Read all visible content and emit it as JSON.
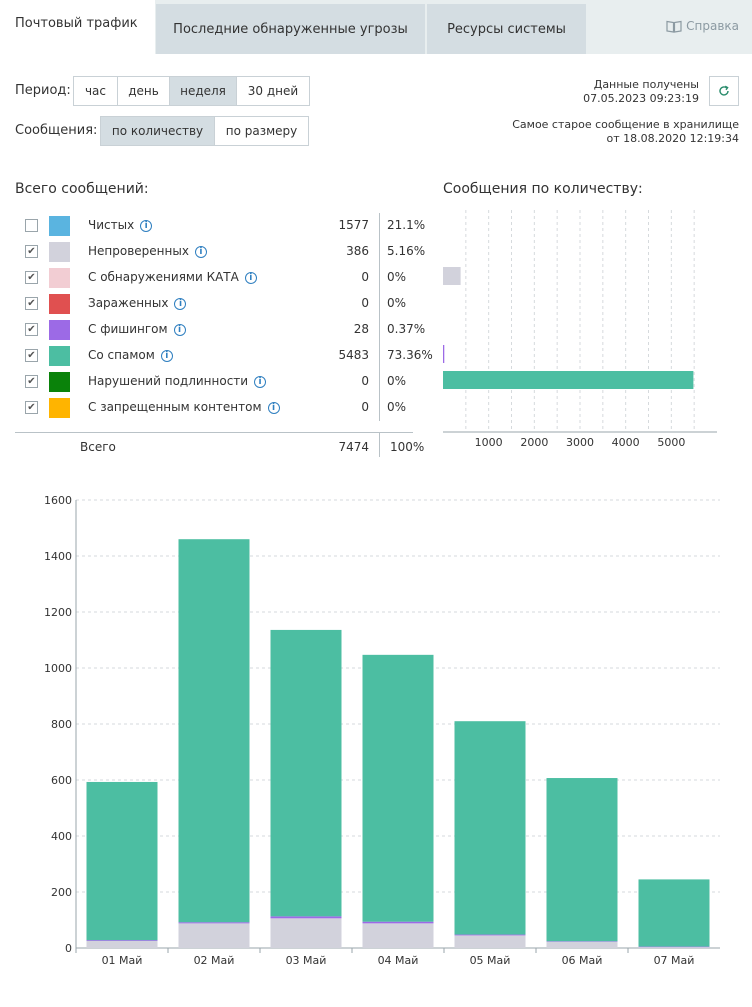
{
  "tabs": [
    {
      "label": "Почтовый трафик",
      "active": true
    },
    {
      "label": "Последние обнаруженные угрозы",
      "active": false
    },
    {
      "label": "Ресурсы системы",
      "active": false
    }
  ],
  "help": {
    "label": "Справка",
    "icon": "book-icon"
  },
  "period": {
    "label": "Период:",
    "options": [
      "час",
      "день",
      "неделя",
      "30 дней"
    ],
    "selected": "неделя"
  },
  "messages_mode": {
    "label": "Сообщения:",
    "options": [
      "по количеству",
      "по размеру"
    ],
    "selected": "по количеству"
  },
  "data_info": {
    "received_label": "Данные получены",
    "received_time": "07.05.2023 09:23:19",
    "oldest_label": "Самое старое сообщение в хранилище",
    "oldest_time": "от 18.08.2020 12:19:34",
    "refresh_icon": "refresh-icon"
  },
  "totals_title": "Всего сообщений:",
  "legend": [
    {
      "name": "Чистых",
      "count": "1577",
      "pct": "21.1%",
      "checked": false,
      "color": "#5ab4e0"
    },
    {
      "name": "Непроверенных",
      "count": "386",
      "pct": "5.16%",
      "checked": true,
      "color": "#d2d2dc"
    },
    {
      "name": "С обнаружениями КАТА",
      "count": "0",
      "pct": "0%",
      "checked": true,
      "color": "#f2cdd3"
    },
    {
      "name": "Зараженных",
      "count": "0",
      "pct": "0%",
      "checked": true,
      "color": "#e05050"
    },
    {
      "name": "С фишингом",
      "count": "28",
      "pct": "0.37%",
      "checked": true,
      "color": "#9c6ae6"
    },
    {
      "name": "Со спамом",
      "count": "5483",
      "pct": "73.36%",
      "checked": true,
      "color": "#4cbea2"
    },
    {
      "name": "Нарушений подлинности",
      "count": "0",
      "pct": "0%",
      "checked": true,
      "color": "#0a820a"
    },
    {
      "name": "С запрещенным контентом",
      "count": "0",
      "pct": "0%",
      "checked": true,
      "color": "#ffb400"
    }
  ],
  "total_row": {
    "label": "Всего",
    "count": "7474",
    "pct": "100%"
  },
  "bar_title": "Сообщения по количеству:",
  "chart_data": [
    {
      "type": "bar",
      "orientation": "horizontal",
      "title": "Сообщения по количеству:",
      "categories": [
        "Чистых",
        "Непроверенных",
        "С обнаружениями КАТА",
        "Зараженных",
        "С фишингом",
        "Со спамом",
        "Нарушений подлинности",
        "С запрещенным контентом"
      ],
      "values": [
        null,
        386,
        0,
        0,
        28,
        5483,
        0,
        0
      ],
      "colors": [
        "#5ab4e0",
        "#d2d2dc",
        "#f2cdd3",
        "#e05050",
        "#9c6ae6",
        "#4cbea2",
        "#0a820a",
        "#ffb400"
      ],
      "xticks": [
        1000,
        2000,
        3000,
        4000,
        5000
      ],
      "xlim": [
        0,
        6000
      ]
    },
    {
      "type": "bar",
      "stacked": true,
      "categories": [
        "01 Май",
        "02 Май",
        "03 Май",
        "04 Май",
        "05 Май",
        "06 Май",
        "07 Май"
      ],
      "series": [
        {
          "name": "Непроверенных",
          "color": "#d2d2dc",
          "values": [
            25,
            88,
            106,
            88,
            45,
            22,
            3
          ]
        },
        {
          "name": "С фишингом",
          "color": "#9c6ae6",
          "values": [
            3,
            4,
            7,
            6,
            3,
            2,
            2
          ]
        },
        {
          "name": "Со спамом",
          "color": "#4cbea2",
          "values": [
            565,
            1368,
            1023,
            953,
            762,
            583,
            240
          ]
        }
      ],
      "ylim": [
        0,
        1600
      ],
      "yticks": [
        0,
        200,
        400,
        600,
        800,
        1000,
        1200,
        1400,
        1600
      ],
      "grid": true
    }
  ]
}
